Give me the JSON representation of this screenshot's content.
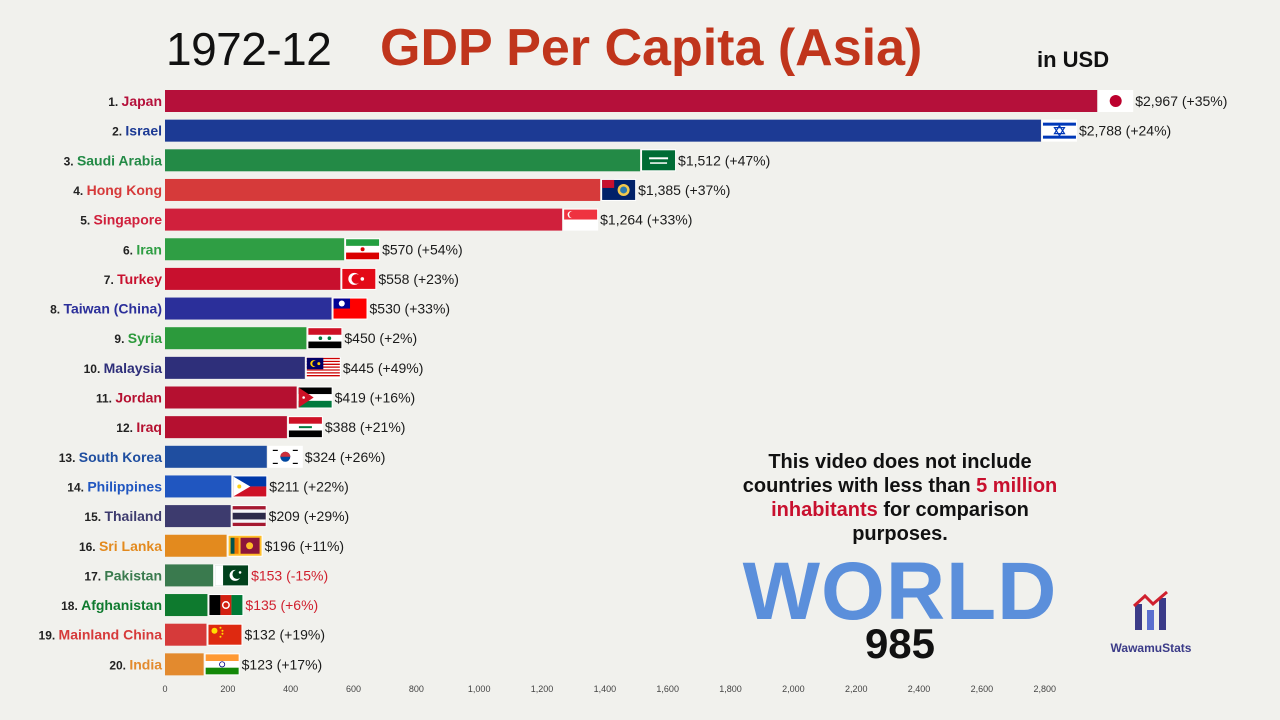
{
  "header": {
    "date": "1972-12",
    "title": "GDP Per Capita (Asia)",
    "unit": "in USD"
  },
  "note": {
    "line1": "This video does not include",
    "line2a": "countries with less than ",
    "highlight1": "5 million",
    "highlight2": "inhabitants",
    "line3b": " for comparison",
    "line4": "purposes."
  },
  "world": {
    "label": "WORLD",
    "value": "985"
  },
  "logo": {
    "text": "WawamuStats"
  },
  "chart_data": {
    "type": "bar",
    "orientation": "horizontal",
    "xlim": [
      0,
      2960
    ],
    "xticks": [
      0,
      200,
      400,
      600,
      800,
      1000,
      1200,
      1400,
      1600,
      1800,
      2000,
      2200,
      2400,
      2600,
      2800
    ],
    "xtick_labels": [
      "0",
      "200",
      "400",
      "600",
      "800",
      "1,000",
      "1,200",
      "1,400",
      "1,600",
      "1,800",
      "2,000",
      "2,200",
      "2,400",
      "2,600",
      "2,800"
    ],
    "bars": [
      {
        "rank": "1.",
        "name": "Japan",
        "value": 2967,
        "value_label": "$2,967 (+35%)",
        "color": "#b5103a",
        "label_color": "#b5103a",
        "value_color": "#1b1b1b",
        "flag": "japan"
      },
      {
        "rank": "2.",
        "name": "Israel",
        "value": 2788,
        "value_label": "$2,788 (+24%)",
        "color": "#1c3a94",
        "label_color": "#1c3a94",
        "value_color": "#1b1b1b",
        "flag": "israel"
      },
      {
        "rank": "3.",
        "name": "Saudi Arabia",
        "value": 1512,
        "value_label": "$1,512 (+47%)",
        "color": "#238a46",
        "label_color": "#238a46",
        "value_color": "#1b1b1b",
        "flag": "saudi"
      },
      {
        "rank": "4.",
        "name": "Hong Kong",
        "value": 1385,
        "value_label": "$1,385 (+37%)",
        "color": "#d63a3a",
        "label_color": "#d63a3a",
        "value_color": "#1b1b1b",
        "flag": "hongkong"
      },
      {
        "rank": "5.",
        "name": "Singapore",
        "value": 1264,
        "value_label": "$1,264 (+33%)",
        "color": "#d0203c",
        "label_color": "#d0203c",
        "value_color": "#1b1b1b",
        "flag": "singapore"
      },
      {
        "rank": "6.",
        "name": "Iran",
        "value": 570,
        "value_label": "$570 (+54%)",
        "color": "#2f9e44",
        "label_color": "#2f9e44",
        "value_color": "#1b1b1b",
        "flag": "iran"
      },
      {
        "rank": "7.",
        "name": "Turkey",
        "value": 558,
        "value_label": "$558 (+23%)",
        "color": "#c8102e",
        "label_color": "#c8102e",
        "value_color": "#1b1b1b",
        "flag": "turkey"
      },
      {
        "rank": "8.",
        "name": "Taiwan (China)",
        "value": 530,
        "value_label": "$530 (+33%)",
        "color": "#2b2f9a",
        "label_color": "#2b2f9a",
        "value_color": "#1b1b1b",
        "flag": "taiwan"
      },
      {
        "rank": "9.",
        "name": "Syria",
        "value": 450,
        "value_label": "$450 (+2%)",
        "color": "#2c9a3c",
        "label_color": "#2c9a3c",
        "value_color": "#1b1b1b",
        "flag": "syria"
      },
      {
        "rank": "10.",
        "name": "Malaysia",
        "value": 445,
        "value_label": "$445 (+49%)",
        "color": "#2e2f7a",
        "label_color": "#2e2f7a",
        "value_color": "#1b1b1b",
        "flag": "malaysia"
      },
      {
        "rank": "11.",
        "name": "Jordan",
        "value": 419,
        "value_label": "$419 (+16%)",
        "color": "#b51030",
        "label_color": "#b51030",
        "value_color": "#1b1b1b",
        "flag": "jordan"
      },
      {
        "rank": "12.",
        "name": "Iraq",
        "value": 388,
        "value_label": "$388 (+21%)",
        "color": "#b51030",
        "label_color": "#b51030",
        "value_color": "#1b1b1b",
        "flag": "iraq"
      },
      {
        "rank": "13.",
        "name": "South Korea",
        "value": 324,
        "value_label": "$324 (+26%)",
        "color": "#1f4ea0",
        "label_color": "#1f4ea0",
        "value_color": "#1b1b1b",
        "flag": "korea"
      },
      {
        "rank": "14.",
        "name": "Philippines",
        "value": 211,
        "value_label": "$211 (+22%)",
        "color": "#2056c0",
        "label_color": "#2056c0",
        "value_color": "#1b1b1b",
        "flag": "philippines"
      },
      {
        "rank": "15.",
        "name": "Thailand",
        "value": 209,
        "value_label": "$209 (+29%)",
        "color": "#3d3b6e",
        "label_color": "#3d3b6e",
        "value_color": "#1b1b1b",
        "flag": "thailand"
      },
      {
        "rank": "16.",
        "name": "Sri Lanka",
        "value": 196,
        "value_label": "$196 (+11%)",
        "color": "#e38a1e",
        "label_color": "#e38a1e",
        "value_color": "#1b1b1b",
        "flag": "srilanka"
      },
      {
        "rank": "17.",
        "name": "Pakistan",
        "value": 153,
        "value_label": "$153 (-15%)",
        "color": "#3a7a4e",
        "label_color": "#3a7a4e",
        "value_color": "#d0202e",
        "flag": "pakistan"
      },
      {
        "rank": "18.",
        "name": "Afghanistan",
        "value": 135,
        "value_label": "$135 (+6%)",
        "color": "#0e7a2e",
        "label_color": "#0e7a2e",
        "value_color": "#d0202e",
        "flag": "afghanistan"
      },
      {
        "rank": "19.",
        "name": "Mainland China",
        "value": 132,
        "value_label": "$132 (+19%)",
        "color": "#d63a3a",
        "label_color": "#d63a3a",
        "value_color": "#1b1b1b",
        "flag": "china"
      },
      {
        "rank": "20.",
        "name": "India",
        "value": 123,
        "value_label": "$123 (+17%)",
        "color": "#e38a2e",
        "label_color": "#e38a2e",
        "value_color": "#1b1b1b",
        "flag": "india"
      }
    ]
  }
}
